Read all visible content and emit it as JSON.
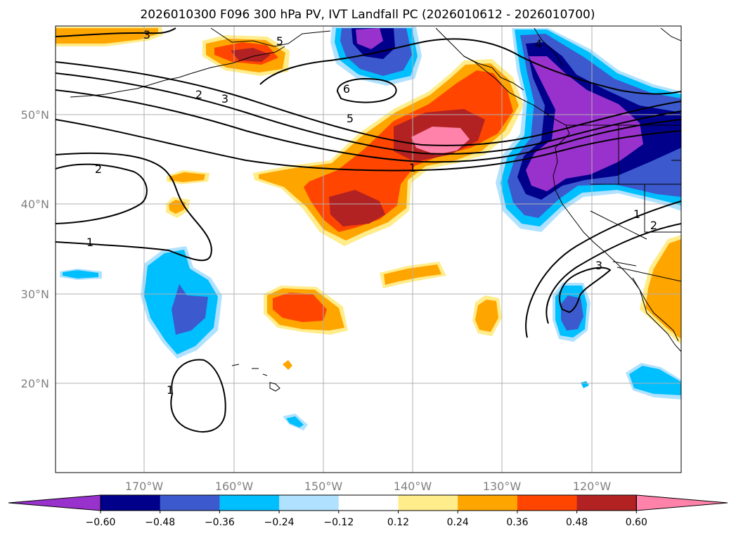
{
  "title": "2026010300 F096 300 hPa PV, IVT Landfall PC (2026010612 - 2026010700)",
  "lat_labels": [
    "50°N",
    "40°N",
    "30°N",
    "20°N"
  ],
  "lon_labels": [
    "170°W",
    "160°W",
    "150°W",
    "140°W",
    "130°W",
    "120°W"
  ],
  "colorbar": {
    "tick_labels": [
      "−0.60",
      "−0.48",
      "−0.36",
      "−0.24",
      "−0.12",
      "0.12",
      "0.24",
      "0.36",
      "0.48",
      "0.60"
    ],
    "colors": [
      "#9932cc",
      "#00008b",
      "#3c5acd",
      "#00bfff",
      "#b0e2ff",
      "#ffffff",
      "#ffec8b",
      "#ffa500",
      "#ff4500",
      "#b22222",
      "#ff82ab"
    ]
  },
  "contour_labels": [
    "3",
    "5",
    "2",
    "3",
    "6",
    "5",
    "4",
    "1",
    "2",
    "1",
    "1",
    "2",
    "3",
    "1"
  ]
}
